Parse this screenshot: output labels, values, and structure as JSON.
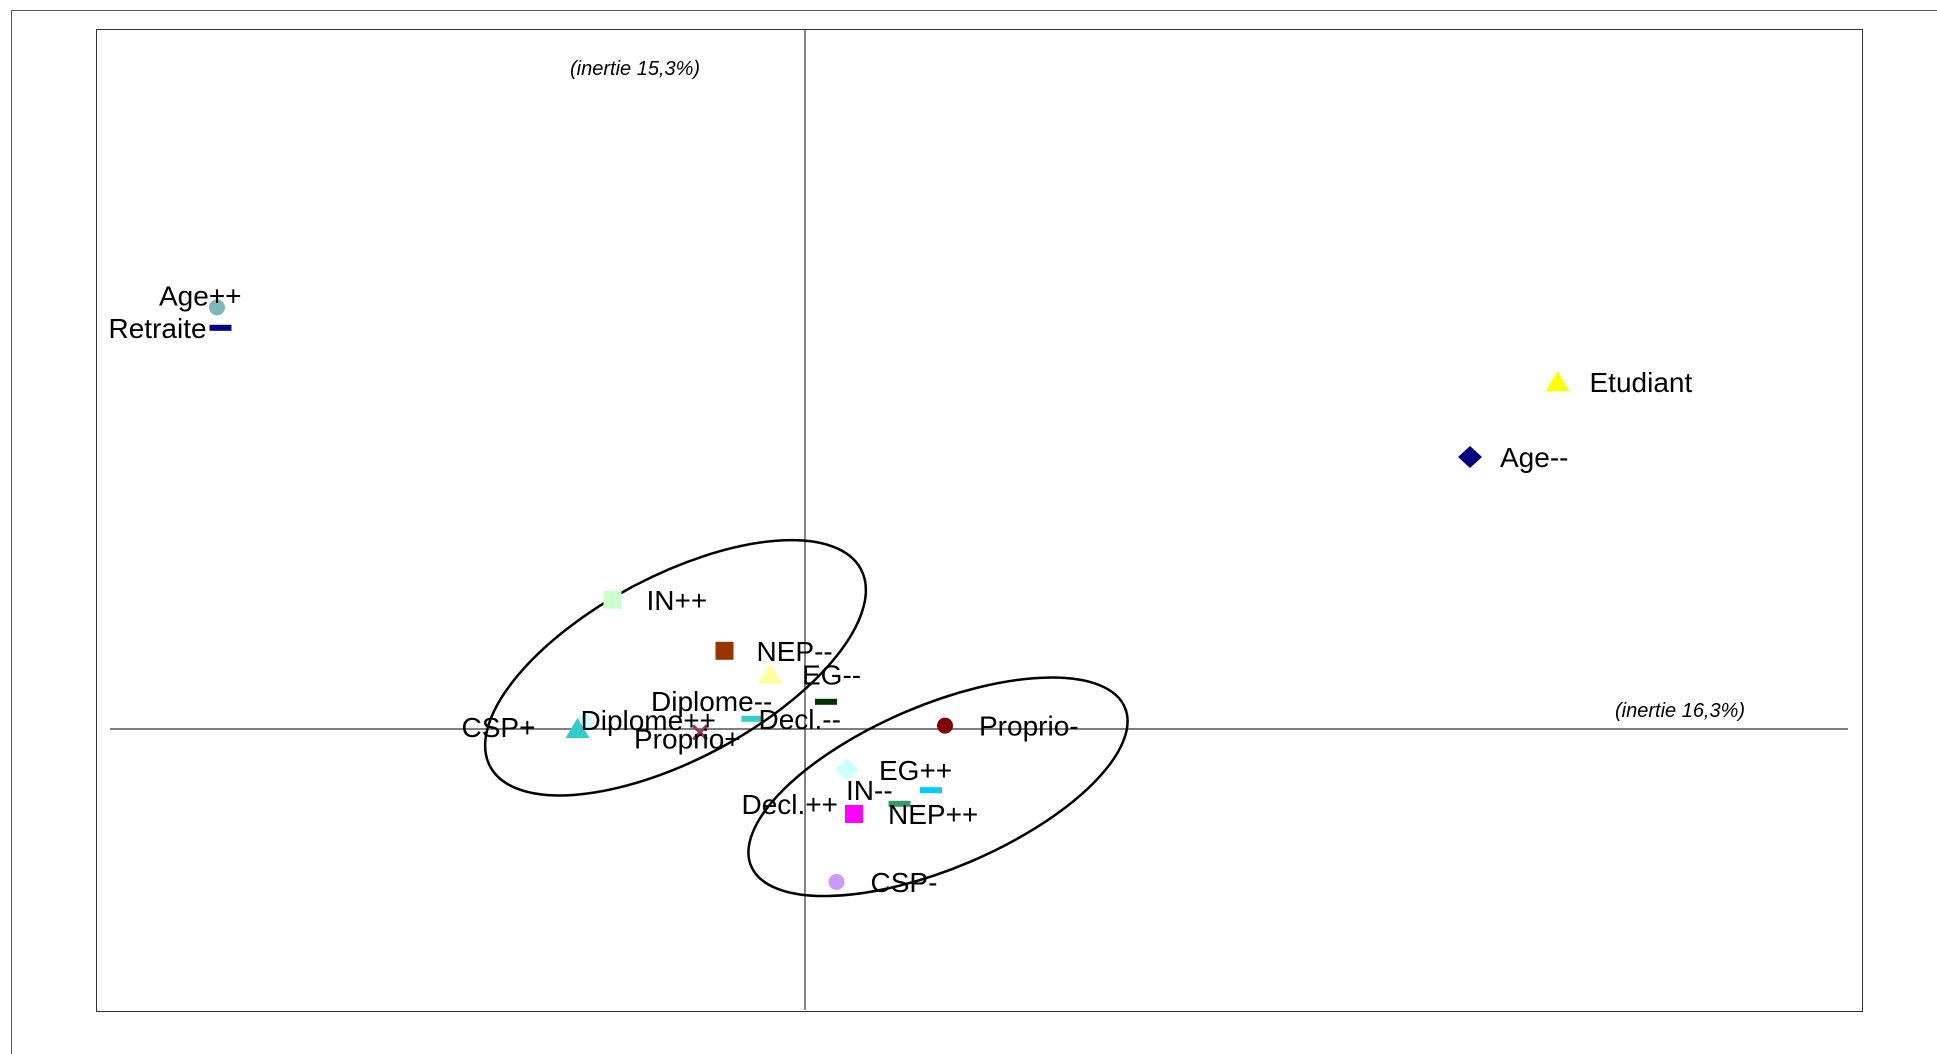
{
  "chart_data": {
    "type": "scatter",
    "title": "",
    "xlabel": "(inertie 16,3%)",
    "ylabel": "(inertie 15,3%)",
    "xlim": [
      -2.0,
      3.0
    ],
    "ylim": [
      -0.8,
      1.5
    ],
    "grid": false,
    "legend": "none",
    "points": [
      {
        "label": "Age++",
        "x": -1.68,
        "y": 1.24,
        "marker": "circle",
        "color": "#7fb8b8"
      },
      {
        "label": "Retraite",
        "x": -1.67,
        "y": 1.18,
        "marker": "dash",
        "color": "#000080"
      },
      {
        "label": "Etudiant",
        "x": 2.15,
        "y": 1.02,
        "marker": "triangle",
        "color": "#ffff00"
      },
      {
        "label": "Age--",
        "x": 1.9,
        "y": 0.8,
        "marker": "diamond",
        "color": "#000080"
      },
      {
        "label": "IN++",
        "x": -0.55,
        "y": 0.38,
        "marker": "square",
        "color": "#ccffcc"
      },
      {
        "label": "NEP--",
        "x": -0.23,
        "y": 0.23,
        "marker": "square",
        "color": "#993300"
      },
      {
        "label": "EG--",
        "x": -0.1,
        "y": 0.16,
        "marker": "triangle",
        "color": "#ffff99"
      },
      {
        "label": "Diplome--",
        "x": 0.06,
        "y": 0.08,
        "marker": "dash",
        "color": "#003300"
      },
      {
        "label": "Decl.--",
        "x": -0.15,
        "y": 0.03,
        "marker": "dash",
        "color": "#33cccc"
      },
      {
        "label": "Diplome++",
        "x": -0.63,
        "y": 0.02,
        "marker": "circle",
        "color": "#ccffff"
      },
      {
        "label": "CSP+",
        "x": -0.65,
        "y": 0.0,
        "marker": "triangle",
        "color": "#33cccc"
      },
      {
        "label": "Proprio+",
        "x": -0.3,
        "y": -0.01,
        "marker": "cross",
        "color": "#993366"
      },
      {
        "label": "Proprio-",
        "x": 0.4,
        "y": 0.01,
        "marker": "circle",
        "color": "#800000"
      },
      {
        "label": "EG++",
        "x": 0.12,
        "y": -0.12,
        "marker": "diamond",
        "color": "#ccffff"
      },
      {
        "label": "IN--",
        "x": 0.36,
        "y": -0.18,
        "marker": "dash",
        "color": "#00ccff"
      },
      {
        "label": "Decl.++",
        "x": 0.27,
        "y": -0.22,
        "marker": "dash",
        "color": "#339966"
      },
      {
        "label": "NEP++",
        "x": 0.14,
        "y": -0.25,
        "marker": "square",
        "color": "#ff00ff"
      },
      {
        "label": "CSP-",
        "x": 0.09,
        "y": -0.45,
        "marker": "circle",
        "color": "#cc99ff"
      }
    ],
    "ellipses": [
      {
        "center_x": -0.37,
        "center_y": 0.18,
        "radius_x": 0.6,
        "radius_y": 0.27,
        "angle_deg": -28
      },
      {
        "center_x": 0.38,
        "center_y": -0.17,
        "radius_x": 0.58,
        "radius_y": 0.24,
        "angle_deg": -23
      }
    ]
  }
}
